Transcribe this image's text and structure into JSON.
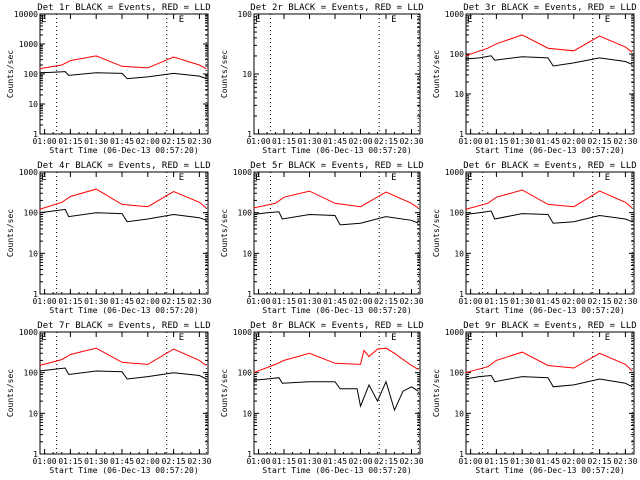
{
  "chart_data": [
    {
      "type": "line",
      "title": "Det 1r BLACK = Events, RED = LLD",
      "xlabel": "Start Time (06-Dec-13 00:57:20)",
      "ylabel": "Counts/sec",
      "x_ticks": [
        "01:00",
        "01:15",
        "01:30",
        "01:45",
        "02:00",
        "02:15",
        "02:30"
      ],
      "y_ticks": [
        "1",
        "10",
        "100",
        "1000",
        "10000"
      ],
      "y_log": true,
      "ylim": [
        1,
        10000
      ],
      "xlim": [
        "00:57:20",
        "02:35"
      ],
      "dotted_lines": [
        "01:07",
        "02:11",
        "02:34"
      ],
      "E_markers": [
        "00:58",
        "02:18"
      ],
      "series": [
        {
          "color": "#000000",
          "x": [
            "00:57",
            "01:05",
            "01:12",
            "01:14",
            "01:30",
            "01:45",
            "01:48",
            "02:00",
            "02:15",
            "02:30",
            "02:34"
          ],
          "values": [
            110,
            115,
            120,
            90,
            110,
            105,
            70,
            80,
            105,
            85,
            70
          ]
        },
        {
          "color": "#ff0000",
          "x": [
            "00:57",
            "01:10",
            "01:15",
            "01:30",
            "01:45",
            "02:00",
            "02:15",
            "02:30",
            "02:34"
          ],
          "values": [
            150,
            200,
            280,
            400,
            180,
            160,
            370,
            200,
            150
          ]
        }
      ]
    },
    {
      "type": "line",
      "title": "Det 2r BLACK = Events, RED = LLD",
      "xlabel": "Start Time (06-Dec-13 00:57:20)",
      "ylabel": "Counts/sec",
      "x_ticks": [
        "01:00",
        "01:15",
        "01:30",
        "01:45",
        "02:00",
        "02:15",
        "02:30"
      ],
      "y_ticks": [
        "1",
        "10",
        "100"
      ],
      "y_log": true,
      "ylim": [
        1,
        100
      ],
      "xlim": [
        "00:57:20",
        "02:35"
      ],
      "dotted_lines": [
        "01:07",
        "02:11",
        "02:34"
      ],
      "E_markers": [
        "00:58",
        "02:18"
      ],
      "series": []
    },
    {
      "type": "line",
      "title": "Det 3r BLACK = Events, RED = LLD",
      "xlabel": "Start Time (06-Dec-13 00:57:20)",
      "ylabel": "Counts/sec",
      "x_ticks": [
        "01:00",
        "01:15",
        "01:30",
        "01:45",
        "02:00",
        "02:15",
        "02:30"
      ],
      "y_ticks": [
        "1",
        "10",
        "100",
        "1000"
      ],
      "y_log": true,
      "ylim": [
        1,
        1000
      ],
      "xlim": [
        "00:57:20",
        "02:35"
      ],
      "dotted_lines": [
        "01:07",
        "02:11",
        "02:34"
      ],
      "E_markers": [
        "00:58",
        "02:18"
      ],
      "series": [
        {
          "color": "#000000",
          "x": [
            "00:57",
            "01:05",
            "01:12",
            "01:14",
            "01:30",
            "01:45",
            "01:48",
            "02:00",
            "02:15",
            "02:30",
            "02:34"
          ],
          "values": [
            75,
            80,
            90,
            70,
            85,
            80,
            50,
            60,
            80,
            65,
            55
          ]
        },
        {
          "color": "#ff0000",
          "x": [
            "00:57",
            "01:10",
            "01:15",
            "01:30",
            "01:45",
            "02:00",
            "02:15",
            "02:30",
            "02:34"
          ],
          "values": [
            90,
            140,
            180,
            300,
            140,
            120,
            280,
            150,
            110
          ]
        }
      ]
    },
    {
      "type": "line",
      "title": "Det 4r BLACK = Events, RED = LLD",
      "xlabel": "Start Time (06-Dec-13 00:57:20)",
      "ylabel": "Counts/sec",
      "x_ticks": [
        "01:00",
        "01:15",
        "01:30",
        "01:45",
        "02:00",
        "02:15",
        "02:30"
      ],
      "y_ticks": [
        "1",
        "10",
        "100",
        "1000"
      ],
      "y_log": true,
      "ylim": [
        1,
        1000
      ],
      "xlim": [
        "00:57:20",
        "02:35"
      ],
      "dotted_lines": [
        "01:07",
        "02:11",
        "02:34"
      ],
      "E_markers": [
        "00:58",
        "02:18"
      ],
      "series": [
        {
          "color": "#000000",
          "x": [
            "00:57",
            "01:05",
            "01:12",
            "01:14",
            "01:30",
            "01:45",
            "01:48",
            "02:00",
            "02:15",
            "02:30",
            "02:34"
          ],
          "values": [
            100,
            110,
            120,
            80,
            100,
            95,
            60,
            70,
            90,
            75,
            65
          ]
        },
        {
          "color": "#ff0000",
          "x": [
            "00:57",
            "01:10",
            "01:15",
            "01:30",
            "01:45",
            "02:00",
            "02:15",
            "02:30",
            "02:34"
          ],
          "values": [
            120,
            180,
            250,
            380,
            160,
            140,
            330,
            180,
            130
          ]
        }
      ]
    },
    {
      "type": "line",
      "title": "Det 5r BLACK = Events, RED = LLD",
      "xlabel": "Start Time (06-Dec-13 00:57:20)",
      "ylabel": "Counts/sec",
      "x_ticks": [
        "01:00",
        "01:15",
        "01:30",
        "01:45",
        "02:00",
        "02:15",
        "02:30"
      ],
      "y_ticks": [
        "1",
        "10",
        "100",
        "1000"
      ],
      "y_log": true,
      "ylim": [
        1,
        1000
      ],
      "xlim": [
        "00:57:20",
        "02:35"
      ],
      "dotted_lines": [
        "01:07",
        "02:11",
        "02:34"
      ],
      "E_markers": [
        "00:58",
        "02:18"
      ],
      "series": [
        {
          "color": "#000000",
          "x": [
            "00:57",
            "01:05",
            "01:12",
            "01:14",
            "01:30",
            "01:45",
            "01:48",
            "02:00",
            "02:15",
            "02:30",
            "02:34"
          ],
          "values": [
            90,
            100,
            105,
            70,
            90,
            85,
            50,
            55,
            80,
            65,
            55
          ]
        },
        {
          "color": "#ff0000",
          "x": [
            "00:57",
            "01:10",
            "01:15",
            "01:30",
            "01:45",
            "02:00",
            "02:15",
            "02:30",
            "02:34"
          ],
          "values": [
            130,
            170,
            240,
            340,
            170,
            140,
            320,
            170,
            130
          ]
        }
      ]
    },
    {
      "type": "line",
      "title": "Det 6r BLACK = Events, RED = LLD",
      "xlabel": "Start Time (06-Dec-13 00:57:20)",
      "ylabel": "Counts/sec",
      "x_ticks": [
        "01:00",
        "01:15",
        "01:30",
        "01:45",
        "02:00",
        "02:15",
        "02:30"
      ],
      "y_ticks": [
        "1",
        "10",
        "100",
        "1000"
      ],
      "y_log": true,
      "ylim": [
        1,
        1000
      ],
      "xlim": [
        "00:57:20",
        "02:35"
      ],
      "dotted_lines": [
        "01:07",
        "02:11",
        "02:34"
      ],
      "E_markers": [
        "00:58",
        "02:18"
      ],
      "series": [
        {
          "color": "#000000",
          "x": [
            "00:57",
            "01:05",
            "01:12",
            "01:14",
            "01:30",
            "01:45",
            "01:48",
            "02:00",
            "02:15",
            "02:30",
            "02:34"
          ],
          "values": [
            90,
            100,
            110,
            70,
            95,
            90,
            55,
            60,
            85,
            70,
            60
          ]
        },
        {
          "color": "#ff0000",
          "x": [
            "00:57",
            "01:10",
            "01:15",
            "01:30",
            "01:45",
            "02:00",
            "02:15",
            "02:30",
            "02:34"
          ],
          "values": [
            120,
            170,
            240,
            360,
            160,
            140,
            340,
            180,
            130
          ]
        }
      ]
    },
    {
      "type": "line",
      "title": "Det 7r BLACK = Events, RED = LLD",
      "xlabel": "Start Time (06-Dec-13 00:57:20)",
      "ylabel": "Counts/sec",
      "x_ticks": [
        "01:00",
        "01:15",
        "01:30",
        "01:45",
        "02:00",
        "02:15",
        "02:30"
      ],
      "y_ticks": [
        "1",
        "10",
        "100",
        "1000"
      ],
      "y_log": true,
      "ylim": [
        1,
        1000
      ],
      "xlim": [
        "00:57:20",
        "02:35"
      ],
      "dotted_lines": [
        "01:07",
        "02:11",
        "02:34"
      ],
      "E_markers": [
        "00:58",
        "02:18"
      ],
      "series": [
        {
          "color": "#000000",
          "x": [
            "00:57",
            "01:05",
            "01:12",
            "01:14",
            "01:30",
            "01:45",
            "01:48",
            "02:00",
            "02:15",
            "02:30",
            "02:34"
          ],
          "values": [
            110,
            120,
            130,
            90,
            110,
            105,
            70,
            80,
            100,
            85,
            70
          ]
        },
        {
          "color": "#ff0000",
          "x": [
            "00:57",
            "01:10",
            "01:15",
            "01:30",
            "01:45",
            "02:00",
            "02:15",
            "02:30",
            "02:34"
          ],
          "values": [
            150,
            210,
            280,
            400,
            180,
            160,
            380,
            200,
            150
          ]
        }
      ]
    },
    {
      "type": "line",
      "title": "Det 8r BLACK = Events, RED = LLD",
      "xlabel": "Start Time (06-Dec-13 00:57:20)",
      "ylabel": "Counts/sec",
      "x_ticks": [
        "01:00",
        "01:15",
        "01:30",
        "01:45",
        "02:00",
        "02:15",
        "02:30"
      ],
      "y_ticks": [
        "1",
        "10",
        "100",
        "1000"
      ],
      "y_log": true,
      "ylim": [
        1,
        1000
      ],
      "xlim": [
        "00:57:20",
        "02:35"
      ],
      "dotted_lines": [
        "01:07",
        "02:11",
        "02:34"
      ],
      "E_markers": [
        "00:58",
        "02:18"
      ],
      "series": [
        {
          "color": "#000000",
          "x": [
            "00:57",
            "01:05",
            "01:12",
            "01:14",
            "01:30",
            "01:45",
            "01:48",
            "01:58",
            "02:00",
            "02:05",
            "02:10",
            "02:15",
            "02:20",
            "02:25",
            "02:30",
            "02:34"
          ],
          "values": [
            65,
            70,
            75,
            55,
            60,
            60,
            40,
            40,
            15,
            50,
            20,
            60,
            12,
            35,
            45,
            35
          ]
        },
        {
          "color": "#ff0000",
          "x": [
            "00:57",
            "01:10",
            "01:15",
            "01:30",
            "01:45",
            "02:00",
            "02:02",
            "02:05",
            "02:10",
            "02:15",
            "02:20",
            "02:30",
            "02:34"
          ],
          "values": [
            100,
            160,
            200,
            300,
            170,
            160,
            350,
            250,
            380,
            400,
            300,
            150,
            120
          ]
        }
      ]
    },
    {
      "type": "line",
      "title": "Det 9r BLACK = Events, RED = LLD",
      "xlabel": "Start Time (06-Dec-13 00:57:20)",
      "ylabel": "Counts/sec",
      "x_ticks": [
        "01:00",
        "01:15",
        "01:30",
        "01:45",
        "02:00",
        "02:15",
        "02:30"
      ],
      "y_ticks": [
        "1",
        "10",
        "100",
        "1000"
      ],
      "y_log": true,
      "ylim": [
        1,
        1000
      ],
      "xlim": [
        "00:57:20",
        "02:35"
      ],
      "dotted_lines": [
        "01:07",
        "02:11",
        "02:34"
      ],
      "E_markers": [
        "00:58",
        "02:18"
      ],
      "series": [
        {
          "color": "#000000",
          "x": [
            "00:57",
            "01:05",
            "01:12",
            "01:14",
            "01:30",
            "01:45",
            "01:48",
            "02:00",
            "02:15",
            "02:30",
            "02:34"
          ],
          "values": [
            70,
            80,
            85,
            60,
            80,
            75,
            45,
            50,
            70,
            55,
            45
          ]
        },
        {
          "color": "#ff0000",
          "x": [
            "00:57",
            "01:10",
            "01:15",
            "01:30",
            "01:45",
            "02:00",
            "02:15",
            "02:30",
            "02:34"
          ],
          "values": [
            100,
            140,
            200,
            320,
            150,
            130,
            300,
            160,
            110
          ]
        }
      ]
    }
  ]
}
